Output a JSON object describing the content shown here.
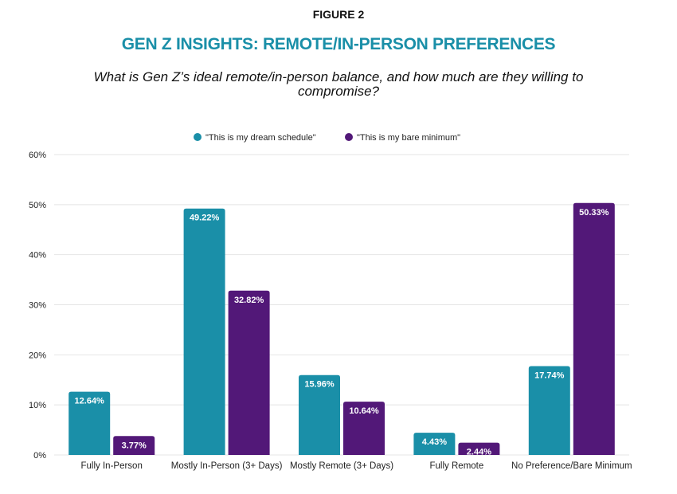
{
  "figure_label": "FIGURE 2",
  "chart_data": {
    "type": "bar",
    "title": "GEN Z INSIGHTS: REMOTE/IN-PERSON PREFERENCES",
    "subtitle": "What is Gen Z’s ideal remote/in-person balance, and how much are they willing to compromise?",
    "categories": [
      "Fully In-Person",
      "Mostly In-Person (3+ Days)",
      "Mostly Remote (3+ Days)",
      "Fully Remote",
      "No Preference/Bare Minimum"
    ],
    "series": [
      {
        "name": "\"This is my dream schedule\"",
        "color": "#1a8fa8",
        "values": [
          12.64,
          49.22,
          15.96,
          4.43,
          17.74
        ],
        "labels": [
          "12.64%",
          "49.22%",
          "15.96%",
          "4.43%",
          "17.74%"
        ]
      },
      {
        "name": "\"This is my bare minimum\"",
        "color": "#521878",
        "values": [
          3.77,
          32.82,
          10.64,
          2.44,
          50.33
        ],
        "labels": [
          "3.77%",
          "32.82%",
          "10.64%",
          "2.44%",
          "50.33%"
        ]
      }
    ],
    "yticks": [
      "0%",
      "10%",
      "20%",
      "30%",
      "40%",
      "50%",
      "60%"
    ],
    "ylim": [
      0,
      60
    ],
    "xlabel": "",
    "ylabel": "",
    "grid": true,
    "legend": "top-center"
  }
}
